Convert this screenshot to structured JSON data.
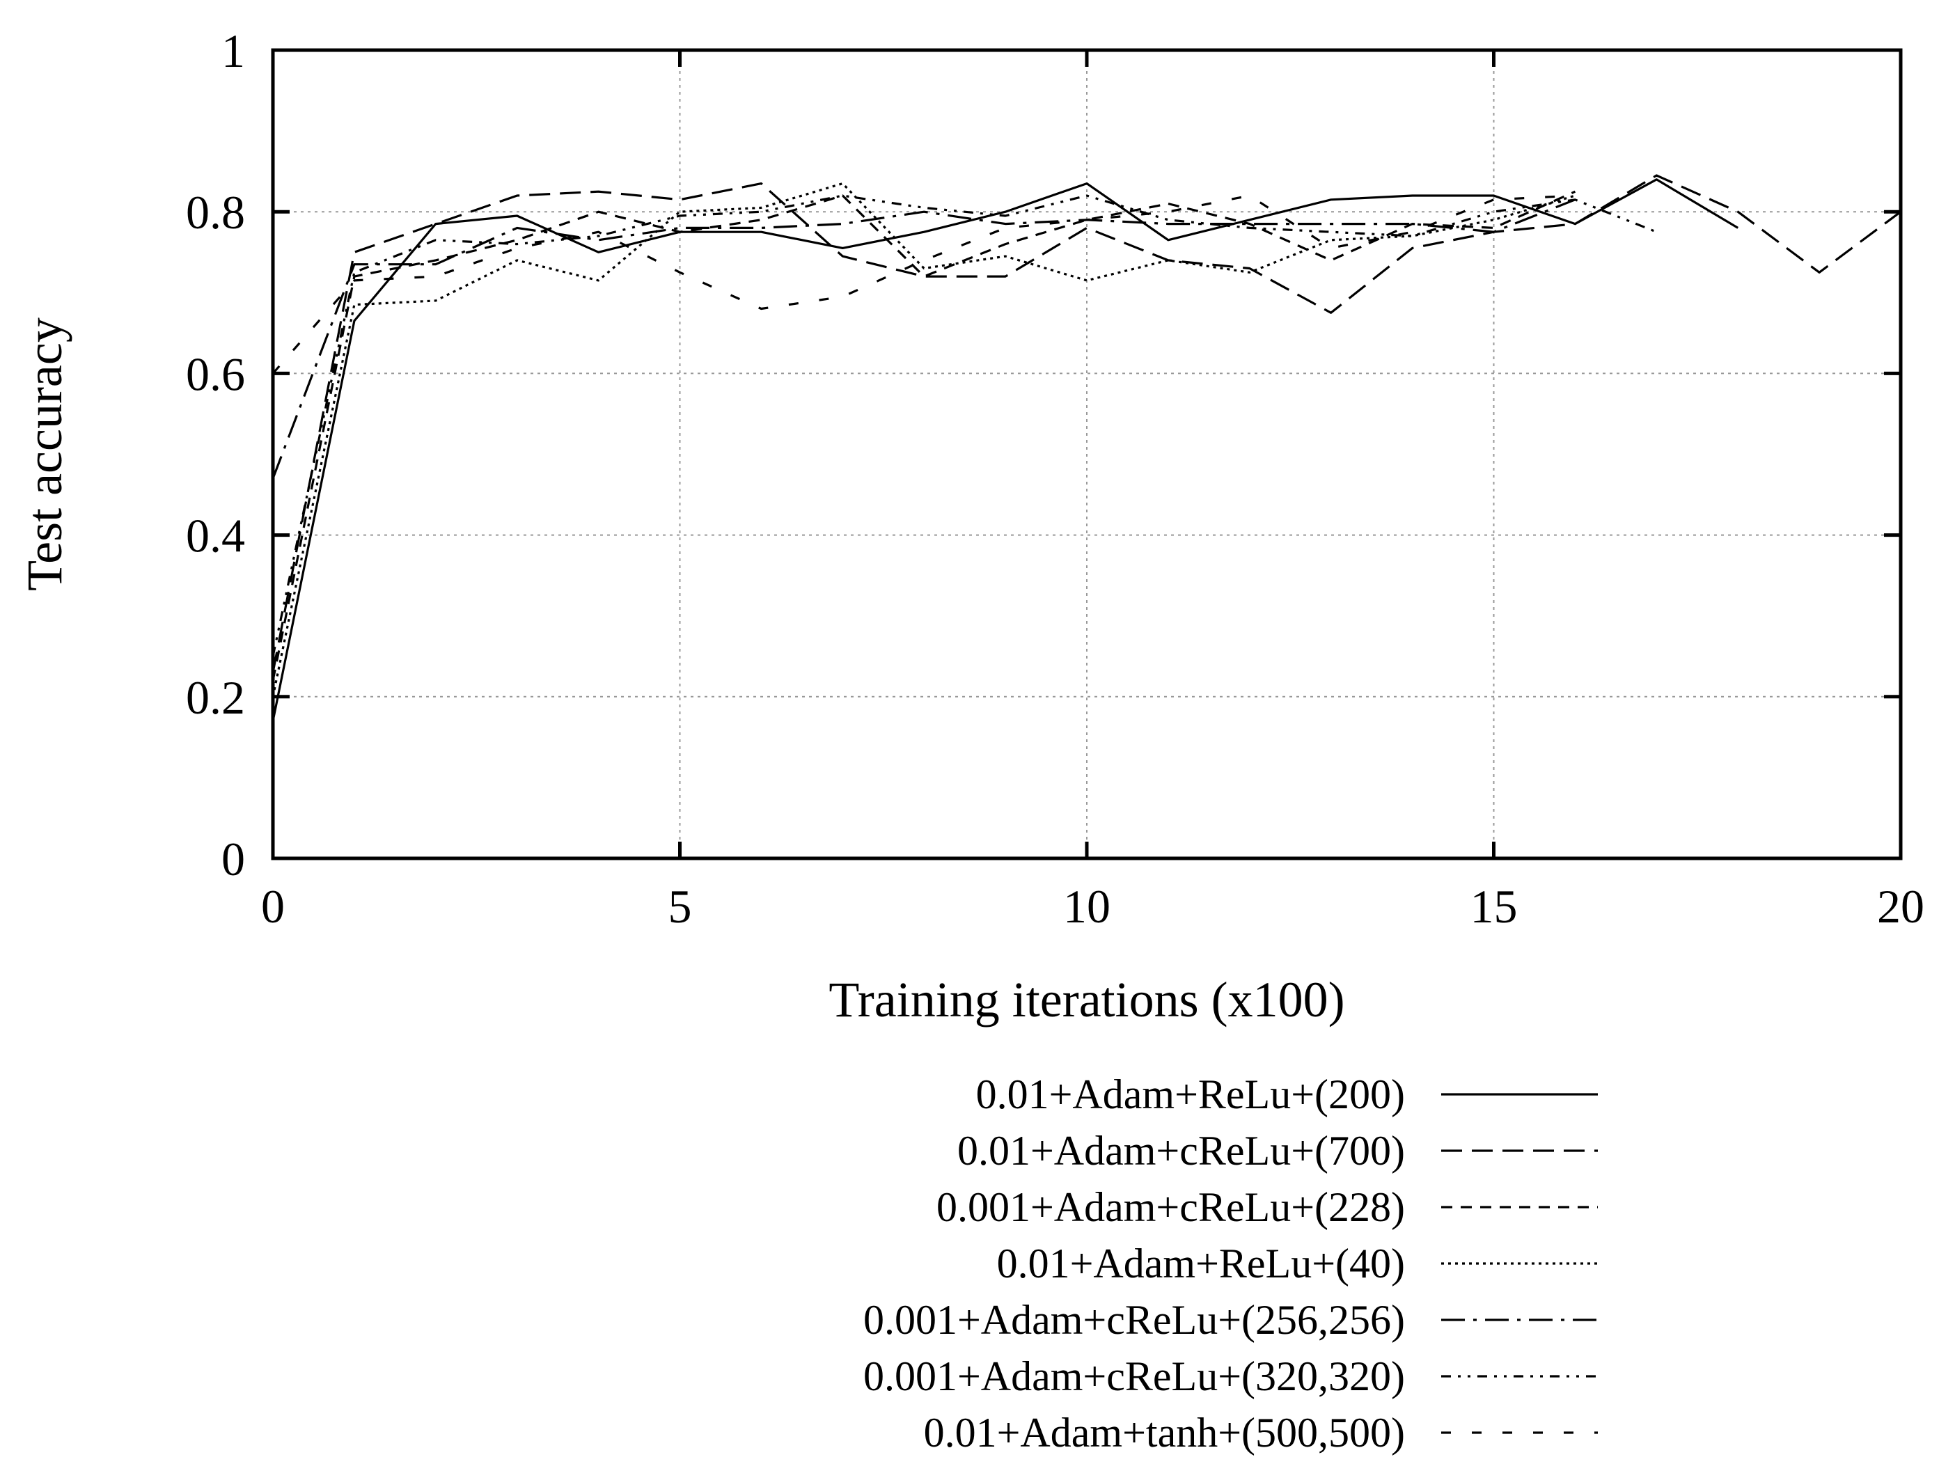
{
  "chart_data": {
    "type": "line",
    "title": "",
    "xlabel": "Training iterations (x100)",
    "ylabel": "Test accuracy",
    "xlim": [
      0,
      20
    ],
    "ylim": [
      0,
      1
    ],
    "xticks": [
      0,
      5,
      10,
      15,
      20
    ],
    "yticks": [
      0,
      0.2,
      0.4,
      0.6,
      0.8,
      1
    ],
    "xtick_labels": [
      "0",
      "5",
      "10",
      "15",
      "20"
    ],
    "ytick_labels": [
      "0",
      "0.2",
      "0.4",
      "0.6",
      "0.8",
      "1"
    ],
    "grid": true,
    "legend_position": "bottom-center, below plot",
    "series": [
      {
        "name": "0.01+Adam+ReLu+(200)",
        "dash": "solid",
        "x": [
          0,
          1,
          2,
          3,
          4,
          5,
          6,
          7,
          8,
          9,
          10,
          11,
          12,
          13,
          14,
          15,
          16,
          17,
          18
        ],
        "y": [
          0.17,
          0.665,
          0.785,
          0.795,
          0.75,
          0.775,
          0.775,
          0.755,
          0.775,
          0.8,
          0.835,
          0.765,
          0.79,
          0.815,
          0.82,
          0.82,
          0.785,
          0.84,
          0.78
        ]
      },
      {
        "name": "0.01+Adam+cReLu+(700)",
        "dash": "longdash",
        "x": [
          0,
          1,
          2,
          3,
          4,
          5,
          6,
          7,
          8,
          9,
          10,
          11,
          12,
          13,
          14,
          15,
          16,
          17,
          18,
          19,
          20
        ],
        "y": [
          0.23,
          0.75,
          0.785,
          0.82,
          0.825,
          0.815,
          0.835,
          0.745,
          0.72,
          0.72,
          0.78,
          0.74,
          0.73,
          0.675,
          0.755,
          0.775,
          0.785,
          0.845,
          0.8,
          0.725,
          0.8
        ]
      },
      {
        "name": "0.001+Adam+cReLu+(228)",
        "dash": "shortdash",
        "x": [
          0,
          1,
          2,
          3,
          4,
          5,
          6,
          7,
          8,
          9,
          10,
          11,
          12,
          13,
          14,
          15,
          16
        ],
        "y": [
          0.22,
          0.72,
          0.74,
          0.765,
          0.8,
          0.775,
          0.79,
          0.82,
          0.72,
          0.76,
          0.79,
          0.81,
          0.785,
          0.74,
          0.785,
          0.78,
          0.825
        ]
      },
      {
        "name": "0.01+Adam+ReLu+(40)",
        "dash": "dotted",
        "x": [
          0,
          1,
          2,
          3,
          4,
          5,
          6,
          7,
          8,
          9,
          10,
          11,
          12,
          13,
          14,
          15,
          16
        ],
        "y": [
          0.2,
          0.685,
          0.69,
          0.74,
          0.715,
          0.8,
          0.805,
          0.835,
          0.73,
          0.745,
          0.715,
          0.74,
          0.725,
          0.765,
          0.77,
          0.79,
          0.82
        ]
      },
      {
        "name": "0.001+Adam+cReLu+(256,256)",
        "dash": "dashdot",
        "x": [
          0,
          1,
          2,
          3,
          4,
          5,
          6,
          7,
          8,
          9,
          10,
          11,
          12,
          13,
          14,
          15,
          16
        ],
        "y": [
          0.47,
          0.735,
          0.735,
          0.78,
          0.765,
          0.78,
          0.78,
          0.785,
          0.8,
          0.785,
          0.79,
          0.785,
          0.785,
          0.785,
          0.785,
          0.775,
          0.815
        ]
      },
      {
        "name": "0.001+Adam+cReLu+(320,320)",
        "dash": "dashdotdot",
        "x": [
          0,
          1,
          2,
          3,
          4,
          5,
          6,
          7,
          8,
          9,
          10,
          11,
          12,
          13,
          14,
          15,
          16,
          17
        ],
        "y": [
          0.25,
          0.725,
          0.765,
          0.76,
          0.77,
          0.795,
          0.8,
          0.82,
          0.805,
          0.795,
          0.82,
          0.79,
          0.78,
          0.775,
          0.77,
          0.8,
          0.815,
          0.775
        ]
      },
      {
        "name": "0.01+Adam+tanh+(500,500)",
        "dash": "sparsedash",
        "x": [
          0,
          1,
          2,
          3,
          4,
          5,
          6,
          7,
          8,
          9,
          10,
          11,
          12,
          13,
          14,
          15,
          16
        ],
        "y": [
          0.6,
          0.715,
          0.72,
          0.755,
          0.775,
          0.725,
          0.68,
          0.695,
          0.74,
          0.78,
          0.79,
          0.8,
          0.82,
          0.755,
          0.775,
          0.815,
          0.82
        ]
      }
    ]
  }
}
